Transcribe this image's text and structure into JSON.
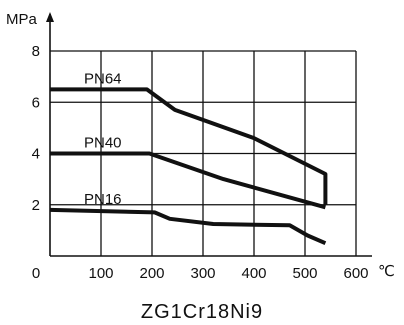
{
  "chart_data": {
    "type": "line",
    "xlabel": "℃",
    "ylabel": "MPa",
    "title": "ZG1Cr18Ni9",
    "xlim": [
      0,
      600
    ],
    "ylim": [
      0,
      8
    ],
    "grid": true,
    "x_ticks": [
      "0",
      "100",
      "200",
      "300",
      "400",
      "500",
      "600"
    ],
    "y_ticks": [
      "2",
      "4",
      "6",
      "8"
    ],
    "series": [
      {
        "name": "PN64",
        "points": [
          [
            0,
            6.5
          ],
          [
            190,
            6.5
          ],
          [
            245,
            5.7
          ],
          [
            400,
            4.6
          ],
          [
            540,
            3.2
          ],
          [
            540,
            2.0
          ]
        ]
      },
      {
        "name": "PN40",
        "points": [
          [
            0,
            4.0
          ],
          [
            195,
            4.0
          ],
          [
            340,
            3.0
          ],
          [
            540,
            1.9
          ]
        ]
      },
      {
        "name": "PN16",
        "points": [
          [
            0,
            1.8
          ],
          [
            205,
            1.7
          ],
          [
            235,
            1.45
          ],
          [
            320,
            1.25
          ],
          [
            470,
            1.2
          ],
          [
            505,
            0.8
          ],
          [
            540,
            0.5
          ]
        ]
      }
    ]
  }
}
